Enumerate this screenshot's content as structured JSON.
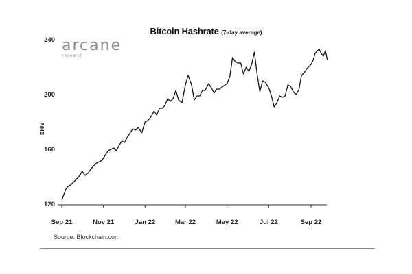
{
  "header": {
    "title": "Bitcoin Hashrate",
    "subtitle": "(7-day average)"
  },
  "logo": {
    "word": "arcane",
    "sub": "research"
  },
  "footer": {
    "source": "Source: Blockchain.com"
  },
  "colors": {
    "line": "#111111",
    "axis": "#333333",
    "rule": "#8c8c8c"
  },
  "chart_data": {
    "type": "line",
    "title": "Bitcoin Hashrate",
    "subtitle": "(7-day average)",
    "xlabel": "",
    "ylabel": "EH/s",
    "ylim": [
      120,
      240
    ],
    "y_ticks": [
      120,
      160,
      200,
      240
    ],
    "x_ticks": [
      {
        "label": "Sep 21",
        "date": "2021-09-01"
      },
      {
        "label": "Nov 21",
        "date": "2021-11-01"
      },
      {
        "label": "Jan 22",
        "date": "2022-01-01"
      },
      {
        "label": "Mar 22",
        "date": "2022-03-01"
      },
      {
        "label": "May 22",
        "date": "2022-05-01"
      },
      {
        "label": "Jul 22",
        "date": "2022-07-01"
      },
      {
        "label": "Sep 22",
        "date": "2022-09-01"
      }
    ],
    "grid": false,
    "legend": "none",
    "series": [
      {
        "x": [
          "2021-09-01",
          "2021-09-04",
          "2021-09-07",
          "2021-09-10",
          "2021-09-14",
          "2021-09-18",
          "2021-09-22",
          "2021-09-26",
          "2021-10-01",
          "2021-10-05",
          "2021-10-10",
          "2021-10-14",
          "2021-10-18",
          "2021-10-22",
          "2021-10-26",
          "2021-10-30",
          "2021-11-04",
          "2021-11-08",
          "2021-11-12",
          "2021-11-16",
          "2021-11-20",
          "2021-11-24",
          "2021-11-28",
          "2021-12-02",
          "2021-12-06",
          "2021-12-10",
          "2021-12-14",
          "2021-12-18",
          "2021-12-22",
          "2021-12-27",
          "2022-01-01",
          "2022-01-05",
          "2022-01-10",
          "2022-01-14",
          "2022-01-18",
          "2022-01-22",
          "2022-01-26",
          "2022-01-30",
          "2022-02-03",
          "2022-02-07",
          "2022-02-11",
          "2022-02-15",
          "2022-02-19",
          "2022-02-24",
          "2022-03-01",
          "2022-03-05",
          "2022-03-10",
          "2022-03-14",
          "2022-03-18",
          "2022-03-22",
          "2022-03-26",
          "2022-03-30",
          "2022-04-04",
          "2022-04-08",
          "2022-04-12",
          "2022-04-16",
          "2022-04-20",
          "2022-04-25",
          "2022-05-01",
          "2022-05-05",
          "2022-05-09",
          "2022-05-13",
          "2022-05-17",
          "2022-05-21",
          "2022-05-25",
          "2022-05-29",
          "2022-06-02",
          "2022-06-06",
          "2022-06-10",
          "2022-06-14",
          "2022-06-18",
          "2022-06-22",
          "2022-06-26",
          "2022-07-01",
          "2022-07-05",
          "2022-07-09",
          "2022-07-13",
          "2022-07-17",
          "2022-07-21",
          "2022-07-25",
          "2022-07-29",
          "2022-08-02",
          "2022-08-06",
          "2022-08-10",
          "2022-08-14",
          "2022-08-18",
          "2022-08-22",
          "2022-08-26",
          "2022-09-01",
          "2022-09-04",
          "2022-09-07",
          "2022-09-10",
          "2022-09-13",
          "2022-09-16",
          "2022-09-19",
          "2022-09-22",
          "2022-09-25"
        ],
        "values": [
          123,
          127,
          131,
          133,
          134,
          136,
          138,
          140,
          144,
          141,
          143,
          146,
          148,
          150,
          151,
          152,
          156,
          159,
          160,
          161,
          159,
          163,
          166,
          165,
          169,
          172,
          175,
          174,
          176,
          172,
          180,
          181,
          184,
          188,
          185,
          190,
          190,
          192,
          197,
          195,
          197,
          203,
          196,
          194,
          207,
          214,
          207,
          196,
          199,
          199,
          203,
          203,
          208,
          205,
          201,
          204,
          204,
          206,
          208,
          213,
          227,
          224,
          223,
          223,
          215,
          220,
          217,
          222,
          231,
          215,
          202,
          210,
          209,
          205,
          199,
          191,
          194,
          199,
          198,
          199,
          207,
          206,
          202,
          200,
          203,
          214,
          216,
          219,
          222,
          225,
          230,
          232,
          233,
          230,
          228,
          232,
          225
        ]
      }
    ]
  }
}
